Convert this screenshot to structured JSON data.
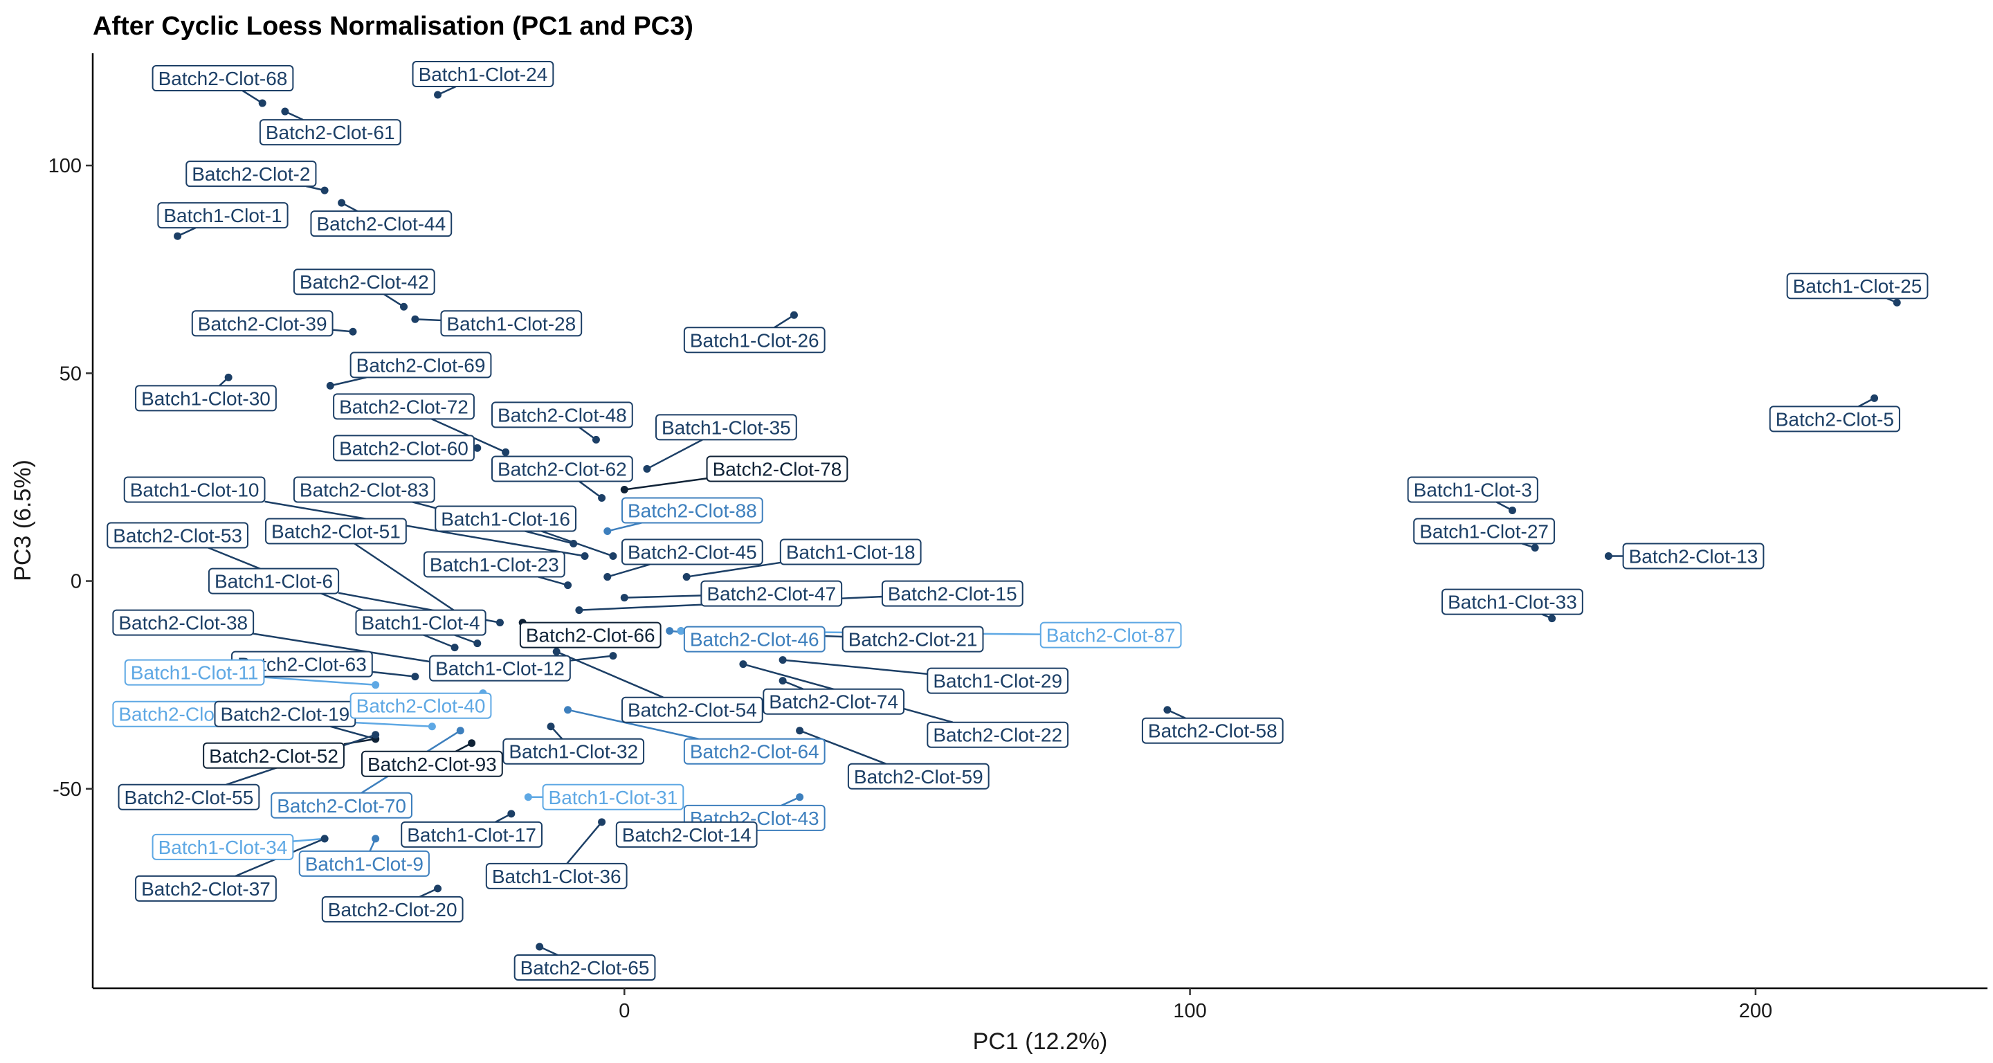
{
  "chart_data": {
    "type": "scatter",
    "title": "After Cyclic Loess Normalisation (PC1 and PC3)",
    "xlabel": "PC1 (12.2%)",
    "ylabel": "PC3 (6.5%)",
    "xlim": [
      -94,
      241
    ],
    "ylim": [
      -98,
      127
    ],
    "xticks": [
      0,
      100,
      200
    ],
    "yticks": [
      -50,
      0,
      50,
      100
    ],
    "grid": false,
    "legend": "none",
    "points": [
      {
        "label": "Batch2-Clot-68",
        "x": -64,
        "y": 115,
        "color": "#1c3f66",
        "lx": -71,
        "ly": 121
      },
      {
        "label": "Batch2-Clot-61",
        "x": -60,
        "y": 113,
        "color": "#1c3f66",
        "lx": -52,
        "ly": 108
      },
      {
        "label": "Batch1-Clot-24",
        "x": -33,
        "y": 117,
        "color": "#1c3f66",
        "lx": -25,
        "ly": 122
      },
      {
        "label": "Batch2-Clot-2",
        "x": -53,
        "y": 94,
        "color": "#1c3f66",
        "lx": -66,
        "ly": 98
      },
      {
        "label": "Batch2-Clot-44",
        "x": -50,
        "y": 91,
        "color": "#1c3f66",
        "lx": -43,
        "ly": 86
      },
      {
        "label": "Batch1-Clot-1",
        "x": -79,
        "y": 83,
        "color": "#1c3f66",
        "lx": -71,
        "ly": 88
      },
      {
        "label": "Batch2-Clot-42",
        "x": -39,
        "y": 66,
        "color": "#1c3f66",
        "lx": -46,
        "ly": 72
      },
      {
        "label": "Batch1-Clot-28",
        "x": -37,
        "y": 63,
        "color": "#1c3f66",
        "lx": -20,
        "ly": 62
      },
      {
        "label": "Batch2-Clot-39",
        "x": -48,
        "y": 60,
        "color": "#1c3f66",
        "lx": -64,
        "ly": 62
      },
      {
        "label": "Batch1-Clot-26",
        "x": 30,
        "y": 64,
        "color": "#1c3f66",
        "lx": 23,
        "ly": 58
      },
      {
        "label": "Batch1-Clot-25",
        "x": 225,
        "y": 67,
        "color": "#1c3f66",
        "lx": 218,
        "ly": 71
      },
      {
        "label": "Batch2-Clot-69",
        "x": -52,
        "y": 47,
        "color": "#1c3f66",
        "lx": -36,
        "ly": 52
      },
      {
        "label": "Batch1-Clot-30",
        "x": -70,
        "y": 49,
        "color": "#1c3f66",
        "lx": -74,
        "ly": 44
      },
      {
        "label": "Batch2-Clot-5",
        "x": 221,
        "y": 44,
        "color": "#1c3f66",
        "lx": 214,
        "ly": 39
      },
      {
        "label": "Batch2-Clot-72",
        "x": -21,
        "y": 31,
        "color": "#1c3f66",
        "lx": -39,
        "ly": 42
      },
      {
        "label": "Batch2-Clot-48",
        "x": -5,
        "y": 34,
        "color": "#1c3f66",
        "lx": -11,
        "ly": 40
      },
      {
        "label": "Batch1-Clot-35",
        "x": 4,
        "y": 27,
        "color": "#1c3f66",
        "lx": 18,
        "ly": 37
      },
      {
        "label": "Batch2-Clot-60",
        "x": -26,
        "y": 32,
        "color": "#1c3f66",
        "lx": -39,
        "ly": 32
      },
      {
        "label": "Batch2-Clot-62",
        "x": -4,
        "y": 20,
        "color": "#1c3f66",
        "lx": -11,
        "ly": 27
      },
      {
        "label": "Batch2-Clot-78",
        "x": 0,
        "y": 22,
        "color": "#0f2236",
        "lx": 27,
        "ly": 27
      },
      {
        "label": "Batch1-Clot-10",
        "x": -7,
        "y": 6,
        "color": "#1c3f66",
        "lx": -76,
        "ly": 22
      },
      {
        "label": "Batch2-Clot-83",
        "x": -9,
        "y": 9,
        "color": "#1c3f66",
        "lx": -46,
        "ly": 22
      },
      {
        "label": "Batch2-Clot-88",
        "x": -3,
        "y": 12,
        "color": "#3d7fbd",
        "lx": 12,
        "ly": 17
      },
      {
        "label": "Batch1-Clot-16",
        "x": -2,
        "y": 6,
        "color": "#1c3f66",
        "lx": -21,
        "ly": 15
      },
      {
        "label": "Batch1-Clot-3",
        "x": 157,
        "y": 17,
        "color": "#1c3f66",
        "lx": 150,
        "ly": 22
      },
      {
        "label": "Batch1-Clot-27",
        "x": 161,
        "y": 8,
        "color": "#1c3f66",
        "lx": 152,
        "ly": 12
      },
      {
        "label": "Batch2-Clot-13",
        "x": 174,
        "y": 6,
        "color": "#1c3f66",
        "lx": 189,
        "ly": 6
      },
      {
        "label": "Batch2-Clot-53",
        "x": -30,
        "y": -16,
        "color": "#1c3f66",
        "lx": -79,
        "ly": 11
      },
      {
        "label": "Batch2-Clot-51",
        "x": -28,
        "y": -9,
        "color": "#1c3f66",
        "lx": -51,
        "ly": 12
      },
      {
        "label": "Batch2-Clot-45",
        "x": -3,
        "y": 1,
        "color": "#1c3f66",
        "lx": 12,
        "ly": 7
      },
      {
        "label": "Batch1-Clot-18",
        "x": 11,
        "y": 1,
        "color": "#1c3f66",
        "lx": 40,
        "ly": 7
      },
      {
        "label": "Batch1-Clot-23",
        "x": -10,
        "y": -1,
        "color": "#1c3f66",
        "lx": -23,
        "ly": 4
      },
      {
        "label": "Batch1-Clot-6",
        "x": -22,
        "y": -10,
        "color": "#1c3f66",
        "lx": -62,
        "ly": 0
      },
      {
        "label": "Batch2-Clot-47",
        "x": 0,
        "y": -4,
        "color": "#1c3f66",
        "lx": 26,
        "ly": -3
      },
      {
        "label": "Batch2-Clot-15",
        "x": -8,
        "y": -7,
        "color": "#1c3f66",
        "lx": 58,
        "ly": -3
      },
      {
        "label": "Batch1-Clot-33",
        "x": 164,
        "y": -9,
        "color": "#1c3f66",
        "lx": 157,
        "ly": -5
      },
      {
        "label": "Batch1-Clot-4",
        "x": -26,
        "y": -15,
        "color": "#1c3f66",
        "lx": -36,
        "ly": -10
      },
      {
        "label": "Batch2-Clot-66",
        "x": -18,
        "y": -10,
        "color": "#0f2236",
        "lx": -6,
        "ly": -13
      },
      {
        "label": "Batch2-Clot-46",
        "x": 8,
        "y": -12,
        "color": "#3d7fbd",
        "lx": 23,
        "ly": -14
      },
      {
        "label": "Batch2-Clot-21",
        "x": 10,
        "y": -12,
        "color": "#1c3f66",
        "lx": 51,
        "ly": -14
      },
      {
        "label": "Batch2-Clot-87",
        "x": 10,
        "y": -12,
        "color": "#5ea8e4",
        "lx": 86,
        "ly": -13
      },
      {
        "label": "Batch2-Clot-38",
        "x": -27,
        "y": -21,
        "color": "#1c3f66",
        "lx": -78,
        "ly": -10
      },
      {
        "label": "Batch2-Clot-63",
        "x": -37,
        "y": -23,
        "color": "#1c3f66",
        "lx": -57,
        "ly": -20
      },
      {
        "label": "Batch1-Clot-12",
        "x": -2,
        "y": -18,
        "color": "#1c3f66",
        "lx": -22,
        "ly": -21
      },
      {
        "label": "Batch1-Clot-29",
        "x": 28,
        "y": -19,
        "color": "#1c3f66",
        "lx": 66,
        "ly": -24
      },
      {
        "label": "Batch1-Clot-11",
        "x": -44,
        "y": -25,
        "color": "#5ea8e4",
        "lx": -76,
        "ly": -22
      },
      {
        "label": "Batch2-Clot-54",
        "x": -12,
        "y": -17,
        "color": "#1c3f66",
        "lx": 12,
        "ly": -31
      },
      {
        "label": "Batch2-Clot-74",
        "x": 28,
        "y": -24,
        "color": "#1c3f66",
        "lx": 37,
        "ly": -29
      },
      {
        "label": "Batch2-Clot-56",
        "x": -34,
        "y": -35,
        "color": "#5ea8e4",
        "lx": -78,
        "ly": -32
      },
      {
        "label": "Batch2-Clot-19",
        "x": -44,
        "y": -38,
        "color": "#1c3f66",
        "lx": -60,
        "ly": -32
      },
      {
        "label": "Batch2-Clot-40",
        "x": -25,
        "y": -27,
        "color": "#5ea8e4",
        "lx": -36,
        "ly": -30
      },
      {
        "label": "Batch2-Clot-58",
        "x": 96,
        "y": -31,
        "color": "#1c3f66",
        "lx": 104,
        "ly": -36
      },
      {
        "label": "Batch2-Clot-22",
        "x": 21,
        "y": -20,
        "color": "#1c3f66",
        "lx": 66,
        "ly": -37
      },
      {
        "label": "Batch1-Clot-32",
        "x": -13,
        "y": -35,
        "color": "#1c3f66",
        "lx": -9,
        "ly": -41
      },
      {
        "label": "Batch2-Clot-64",
        "x": -10,
        "y": -31,
        "color": "#3d7fbd",
        "lx": 23,
        "ly": -41
      },
      {
        "label": "Batch2-Clot-52",
        "x": -44,
        "y": -38,
        "color": "#0f2236",
        "lx": -62,
        "ly": -42
      },
      {
        "label": "Batch2-Clot-93",
        "x": -27,
        "y": -39,
        "color": "#0f2236",
        "lx": -34,
        "ly": -44
      },
      {
        "label": "Batch2-Clot-59",
        "x": 31,
        "y": -36,
        "color": "#1c3f66",
        "lx": 52,
        "ly": -47
      },
      {
        "label": "Batch2-Clot-55",
        "x": -44,
        "y": -37,
        "color": "#1c3f66",
        "lx": -77,
        "ly": -52
      },
      {
        "label": "Batch1-Clot-31",
        "x": -17,
        "y": -52,
        "color": "#5ea8e4",
        "lx": -2,
        "ly": -52
      },
      {
        "label": "Batch2-Clot-70",
        "x": -29,
        "y": -36,
        "color": "#3d7fbd",
        "lx": -50,
        "ly": -54
      },
      {
        "label": "Batch2-Clot-43",
        "x": 31,
        "y": -52,
        "color": "#3d7fbd",
        "lx": 23,
        "ly": -57
      },
      {
        "label": "Batch1-Clot-17",
        "x": -20,
        "y": -56,
        "color": "#1c3f66",
        "lx": -27,
        "ly": -61
      },
      {
        "label": "Batch2-Clot-14",
        "x": 21,
        "y": -57,
        "color": "#1c3f66",
        "lx": 11,
        "ly": -61
      },
      {
        "label": "Batch1-Clot-34",
        "x": -53,
        "y": -62,
        "color": "#5ea8e4",
        "lx": -71,
        "ly": -64
      },
      {
        "label": "Batch1-Clot-9",
        "x": -44,
        "y": -62,
        "color": "#3d7fbd",
        "lx": -46,
        "ly": -68
      },
      {
        "label": "Batch1-Clot-36",
        "x": -4,
        "y": -58,
        "color": "#1c3f66",
        "lx": -12,
        "ly": -71
      },
      {
        "label": "Batch2-Clot-37",
        "x": -53,
        "y": -62,
        "color": "#1c3f66",
        "lx": -74,
        "ly": -74
      },
      {
        "label": "Batch2-Clot-20",
        "x": -33,
        "y": -74,
        "color": "#1c3f66",
        "lx": -41,
        "ly": -79
      },
      {
        "label": "Batch2-Clot-65",
        "x": -15,
        "y": -88,
        "color": "#1c3f66",
        "lx": -7,
        "ly": -93
      }
    ]
  }
}
